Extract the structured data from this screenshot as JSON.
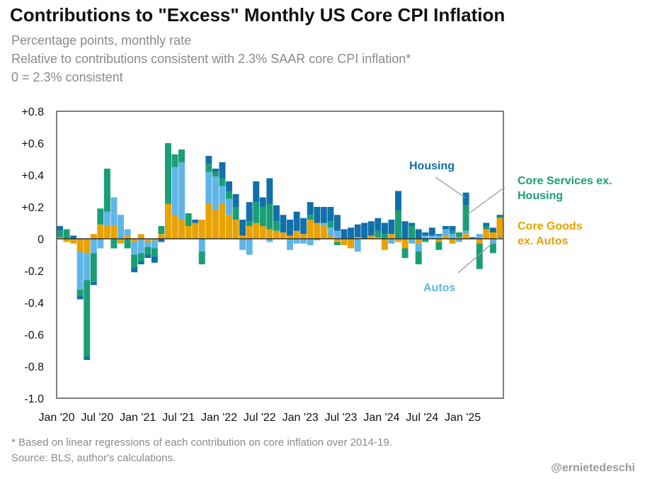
{
  "header": {
    "title": "Contributions to \"Excess\" Monthly US Core CPI Inflation",
    "subtitle_1": "Percentage points, monthly rate",
    "subtitle_2": "Relative to contributions consistent with 2.3% SAAR core CPI inflation*",
    "subtitle_3": "0 = 2.3% consistent"
  },
  "footer": {
    "note": "* Based on linear regressions of each contribution on core inflation over 2014-19.",
    "source": "Source: BLS, author's calculations.",
    "handle": "@ernietedeschi"
  },
  "colors": {
    "housing": "#1170aa",
    "services": "#1b9e77",
    "goods": "#e8a202",
    "autos": "#5fb6e6",
    "frame": "#555555",
    "zero": "#333333"
  },
  "chart_data": {
    "type": "bar",
    "stacked": true,
    "title": "Contributions to \"Excess\" Monthly US Core CPI Inflation",
    "ylabel": "Percentage points, monthly rate",
    "ylim": [
      -1.0,
      0.8
    ],
    "ytick_values": [
      0.8,
      0.6,
      0.4,
      0.2,
      0,
      -0.2,
      -0.4,
      -0.6,
      -0.8,
      -1.0
    ],
    "yticks": [
      "+0.8",
      "+0.6",
      "+0.4",
      "+0.2",
      "0",
      "-0.2",
      "-0.4",
      "-0.6",
      "-0.8",
      "-1.0"
    ],
    "xticks": [
      "Jan '20",
      "Jul '20",
      "Jan '21",
      "Jul '21",
      "Jan '22",
      "Jul '22",
      "Jan '23",
      "Jul '23",
      "Jan '24",
      "Jul '24",
      "Jan '25"
    ],
    "categories": [
      "2020-01",
      "2020-02",
      "2020-03",
      "2020-04",
      "2020-05",
      "2020-06",
      "2020-07",
      "2020-08",
      "2020-09",
      "2020-10",
      "2020-11",
      "2020-12",
      "2021-01",
      "2021-02",
      "2021-03",
      "2021-04",
      "2021-05",
      "2021-06",
      "2021-07",
      "2021-08",
      "2021-09",
      "2021-10",
      "2021-11",
      "2021-12",
      "2022-01",
      "2022-02",
      "2022-03",
      "2022-04",
      "2022-05",
      "2022-06",
      "2022-07",
      "2022-08",
      "2022-09",
      "2022-10",
      "2022-11",
      "2022-12",
      "2023-01",
      "2023-02",
      "2023-03",
      "2023-04",
      "2023-05",
      "2023-06",
      "2023-07",
      "2023-08",
      "2023-09",
      "2023-10",
      "2023-11",
      "2023-12",
      "2024-01",
      "2024-02",
      "2024-03",
      "2024-04",
      "2024-05",
      "2024-06",
      "2024-07",
      "2024-08",
      "2024-09",
      "2024-10",
      "2024-11",
      "2024-12",
      "2025-01",
      "2025-02",
      "2025-03",
      "2025-04",
      "2025-05",
      "2025-06"
    ],
    "series": [
      {
        "name": "Core Goods ex. Autos",
        "color_key": "goods",
        "values": [
          0.01,
          -0.02,
          -0.03,
          -0.08,
          -0.09,
          0.03,
          0.09,
          0.08,
          0.08,
          -0.03,
          0.02,
          -0.02,
          0.03,
          -0.02,
          -0.01,
          0.03,
          0.22,
          0.15,
          0.12,
          0.08,
          0.1,
          0.12,
          0.22,
          0.18,
          0.22,
          0.15,
          0.12,
          0.02,
          0.08,
          0.1,
          0.08,
          0.06,
          0.05,
          0.04,
          0.02,
          0.05,
          0.03,
          0.12,
          0.1,
          0.08,
          0.02,
          -0.02,
          -0.04,
          -0.06,
          0.01,
          0.0,
          0.02,
          0.01,
          -0.07,
          0.03,
          -0.02,
          -0.06,
          0.0,
          -0.03,
          0.0,
          0.0,
          -0.02,
          0.02,
          -0.03,
          0.01,
          0.03,
          0.0,
          -0.03,
          0.06,
          0.04,
          0.13
        ]
      },
      {
        "name": "Autos",
        "color_key": "autos",
        "values": [
          0.0,
          0.0,
          0.0,
          -0.24,
          -0.17,
          -0.09,
          -0.06,
          0.09,
          0.18,
          0.15,
          0.04,
          -0.08,
          -0.09,
          -0.03,
          -0.05,
          0.0,
          0.0,
          0.3,
          0.36,
          0.0,
          0.0,
          -0.08,
          0.2,
          0.21,
          0.11,
          0.1,
          0.0,
          -0.07,
          -0.1,
          0.0,
          0.0,
          -0.02,
          0.0,
          0.0,
          -0.07,
          -0.03,
          -0.03,
          -0.04,
          -0.01,
          0.02,
          0.05,
          0.05,
          0.0,
          0.0,
          -0.08,
          0.0,
          0.0,
          0.0,
          0.0,
          -0.03,
          0.0,
          0.0,
          -0.03,
          -0.05,
          0.02,
          0.02,
          0.02,
          0.04,
          0.03,
          -0.02,
          0.02,
          0.0,
          0.03,
          0.0,
          -0.03,
          0.0
        ]
      },
      {
        "name": "Core Services ex. Housing",
        "color_key": "services",
        "values": [
          0.04,
          0.06,
          0.0,
          -0.04,
          -0.48,
          -0.18,
          0.1,
          0.27,
          -0.06,
          0.0,
          -0.06,
          -0.08,
          -0.05,
          -0.05,
          -0.05,
          0.05,
          0.38,
          0.08,
          0.08,
          0.08,
          0.0,
          -0.08,
          0.05,
          0.03,
          0.05,
          0.05,
          0.08,
          0.0,
          0.03,
          0.13,
          0.12,
          0.16,
          0.06,
          0.0,
          0.0,
          0.0,
          0.0,
          0.03,
          0.0,
          0.0,
          0.04,
          -0.02,
          0.0,
          0.0,
          0.0,
          0.0,
          0.0,
          0.04,
          0.03,
          0.0,
          0.18,
          -0.06,
          0.08,
          -0.08,
          -0.02,
          0.0,
          -0.05,
          0.0,
          0.02,
          0.03,
          0.16,
          0.0,
          -0.16,
          0.02,
          -0.06,
          0.01
        ]
      },
      {
        "name": "Housing",
        "color_key": "housing",
        "values": [
          0.03,
          0.0,
          0.02,
          -0.02,
          -0.02,
          -0.02,
          0.0,
          0.0,
          0.0,
          0.0,
          0.0,
          -0.03,
          -0.02,
          -0.02,
          -0.04,
          -0.02,
          0.0,
          0.0,
          0.0,
          0.0,
          0.02,
          0.0,
          0.05,
          0.02,
          0.1,
          0.06,
          0.08,
          0.1,
          0.12,
          0.13,
          0.06,
          0.16,
          0.1,
          0.11,
          0.1,
          0.12,
          0.1,
          0.08,
          0.1,
          0.1,
          0.09,
          0.1,
          0.06,
          0.07,
          0.08,
          0.1,
          0.09,
          0.08,
          0.07,
          0.09,
          0.12,
          0.11,
          0.02,
          0.06,
          0.02,
          0.05,
          0.01,
          0.02,
          0.03,
          0.0,
          0.08,
          0.01,
          0.0,
          0.02,
          0.03,
          0.01
        ]
      }
    ],
    "annotations": [
      {
        "text": "Housing",
        "color_key": "housing"
      },
      {
        "text_lines": [
          "Core Services ex.",
          "Housing"
        ],
        "color_key": "services"
      },
      {
        "text_lines": [
          "Core Goods",
          "ex. Autos"
        ],
        "color_key": "goods"
      },
      {
        "text": "Autos",
        "color_key": "autos"
      }
    ]
  }
}
